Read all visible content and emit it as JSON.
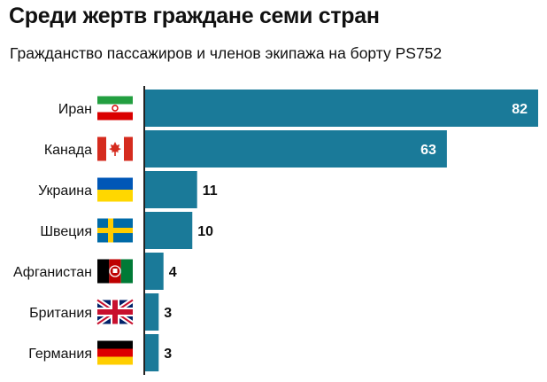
{
  "title": "Среди жертв граждане семи стран",
  "subtitle": "Гражданство пассажиров и членов экипажа на борту PS752",
  "colors": {
    "bar": "#1a7a99",
    "axis": "#222222",
    "value_inside": "#ffffff",
    "value_outside": "#111111"
  },
  "chart_data": {
    "type": "bar",
    "orientation": "horizontal",
    "title": "Среди жертв граждане семи стран",
    "subtitle": "Гражданство пассажиров и членов экипажа на борту PS752",
    "categories": [
      "Иран",
      "Канада",
      "Украина",
      "Швеция",
      "Афганистан",
      "Британия",
      "Германия"
    ],
    "flags": [
      "iran-flag-icon",
      "canada-flag-icon",
      "ukraine-flag-icon",
      "sweden-flag-icon",
      "afghanistan-flag-icon",
      "uk-flag-icon",
      "germany-flag-icon"
    ],
    "values": [
      82,
      63,
      11,
      10,
      4,
      3,
      3
    ],
    "xlabel": "",
    "ylabel": "",
    "xlim": [
      0,
      82
    ],
    "grid": false,
    "legend": "none",
    "data_labels": true
  }
}
